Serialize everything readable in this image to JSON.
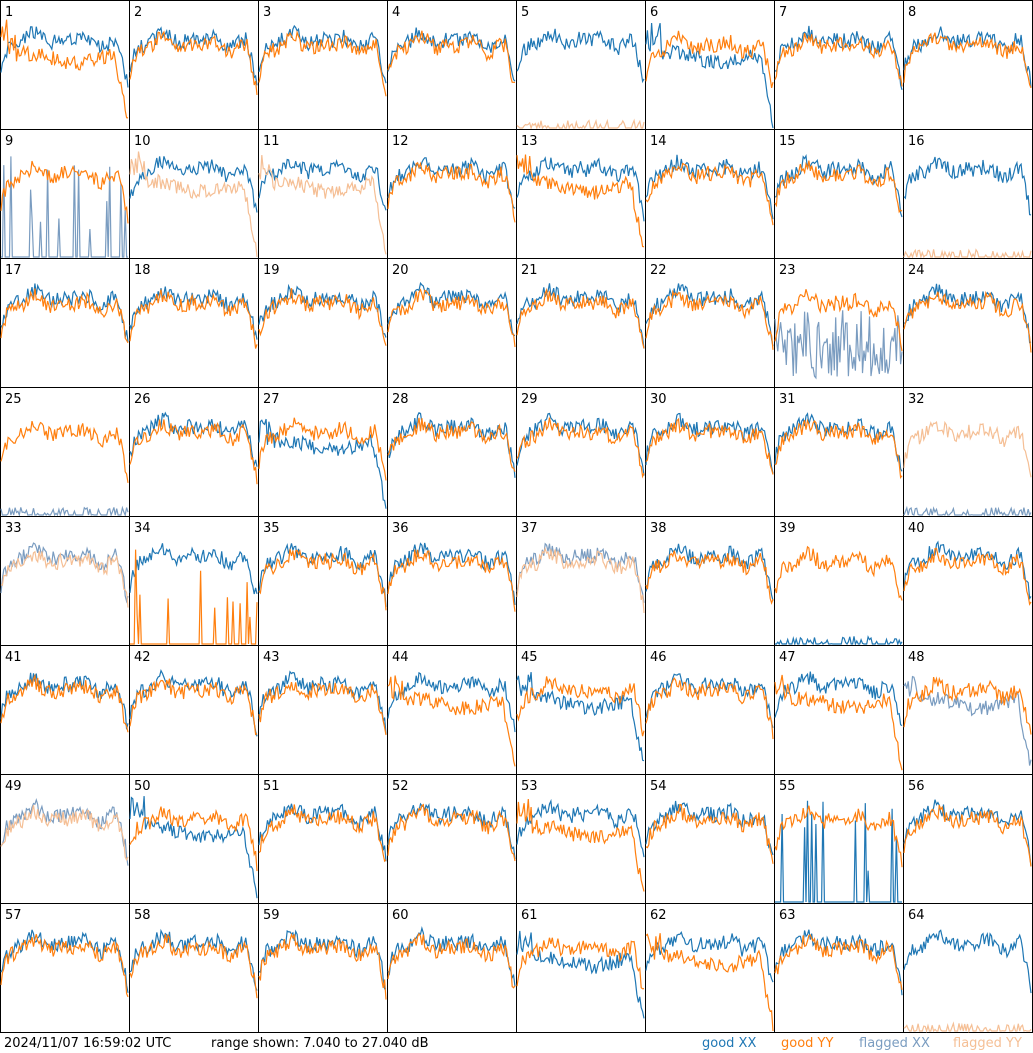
{
  "colors": {
    "good_xx": "#1f77b4",
    "good_yy": "#ff7f0e",
    "flagged_xx": "#7a9cc0",
    "flagged_yy": "#f5bf95",
    "border": "#000000"
  },
  "footer": {
    "timestamp": "2024/11/07 16:59:02 UTC",
    "range_text": "range shown: 7.040 to 27.040 dB"
  },
  "legend": {
    "good_xx": "good XX",
    "good_yy": "good YY",
    "flagged_xx": "flagged XX",
    "flagged_yy": "flagged YY"
  },
  "chart_data": {
    "type": "line",
    "layout": "8x8 small multiples",
    "ylim": [
      7.04,
      27.04
    ],
    "yunit": "dB",
    "series_names": [
      "good XX",
      "good YY",
      "flagged XX",
      "flagged YY"
    ],
    "panels": [
      {
        "id": "1",
        "xx": "good",
        "yy": "good",
        "yy_shape": "rolloff"
      },
      {
        "id": "2",
        "xx": "good",
        "yy": "good"
      },
      {
        "id": "3",
        "xx": "good",
        "yy": "good"
      },
      {
        "id": "4",
        "xx": "good",
        "yy": "good"
      },
      {
        "id": "5",
        "xx": "good",
        "yy": "flagged",
        "yy_shape": "flat"
      },
      {
        "id": "6",
        "xx": "good",
        "yy": "good",
        "xx_shape": "rolloff"
      },
      {
        "id": "7",
        "xx": "good",
        "yy": "good"
      },
      {
        "id": "8",
        "xx": "good",
        "yy": "good"
      },
      {
        "id": "9",
        "xx": "flagged",
        "yy": "good",
        "xx_shape": "spikes"
      },
      {
        "id": "10",
        "xx": "good",
        "yy": "flagged",
        "yy_shape": "rolloff"
      },
      {
        "id": "11",
        "xx": "good",
        "yy": "flagged",
        "yy_shape": "rolloff"
      },
      {
        "id": "12",
        "xx": "good",
        "yy": "good"
      },
      {
        "id": "13",
        "xx": "good",
        "yy": "good",
        "yy_shape": "rolloff"
      },
      {
        "id": "14",
        "xx": "good",
        "yy": "good"
      },
      {
        "id": "15",
        "xx": "good",
        "yy": "good"
      },
      {
        "id": "16",
        "xx": "good",
        "yy": "flagged",
        "yy_shape": "flat"
      },
      {
        "id": "17",
        "xx": "good",
        "yy": "good"
      },
      {
        "id": "18",
        "xx": "good",
        "yy": "good"
      },
      {
        "id": "19",
        "xx": "good",
        "yy": "good"
      },
      {
        "id": "20",
        "xx": "good",
        "yy": "good"
      },
      {
        "id": "21",
        "xx": "good",
        "yy": "good"
      },
      {
        "id": "22",
        "xx": "good",
        "yy": "good"
      },
      {
        "id": "23",
        "xx": "flagged",
        "yy": "good",
        "xx_shape": "noise"
      },
      {
        "id": "24",
        "xx": "good",
        "yy": "good"
      },
      {
        "id": "25",
        "xx": "flagged",
        "yy": "good",
        "xx_shape": "flat"
      },
      {
        "id": "26",
        "xx": "good",
        "yy": "good"
      },
      {
        "id": "27",
        "xx": "good",
        "yy": "good",
        "xx_shape": "rolloff"
      },
      {
        "id": "28",
        "xx": "good",
        "yy": "good"
      },
      {
        "id": "29",
        "xx": "good",
        "yy": "good"
      },
      {
        "id": "30",
        "xx": "good",
        "yy": "good"
      },
      {
        "id": "31",
        "xx": "good",
        "yy": "good"
      },
      {
        "id": "32",
        "xx": "flagged",
        "yy": "flagged",
        "xx_shape": "flat"
      },
      {
        "id": "33",
        "xx": "flagged",
        "yy": "flagged"
      },
      {
        "id": "34",
        "xx": "good",
        "yy": "good",
        "yy_shape": "spikes"
      },
      {
        "id": "35",
        "xx": "good",
        "yy": "good"
      },
      {
        "id": "36",
        "xx": "good",
        "yy": "good"
      },
      {
        "id": "37",
        "xx": "flagged",
        "yy": "flagged"
      },
      {
        "id": "38",
        "xx": "good",
        "yy": "good"
      },
      {
        "id": "39",
        "xx": "good",
        "yy": "good",
        "xx_shape": "flat"
      },
      {
        "id": "40",
        "xx": "good",
        "yy": "good"
      },
      {
        "id": "41",
        "xx": "good",
        "yy": "good"
      },
      {
        "id": "42",
        "xx": "good",
        "yy": "good"
      },
      {
        "id": "43",
        "xx": "good",
        "yy": "good"
      },
      {
        "id": "44",
        "xx": "good",
        "yy": "good",
        "yy_shape": "rolloff"
      },
      {
        "id": "45",
        "xx": "good",
        "yy": "good",
        "xx_shape": "rolloff"
      },
      {
        "id": "46",
        "xx": "good",
        "yy": "good"
      },
      {
        "id": "47",
        "xx": "good",
        "yy": "good",
        "yy_shape": "rolloff"
      },
      {
        "id": "48",
        "xx": "flagged",
        "yy": "good",
        "xx_shape": "rolloff"
      },
      {
        "id": "49",
        "xx": "flagged",
        "yy": "flagged"
      },
      {
        "id": "50",
        "xx": "good",
        "yy": "good",
        "xx_shape": "rolloff"
      },
      {
        "id": "51",
        "xx": "good",
        "yy": "good"
      },
      {
        "id": "52",
        "xx": "good",
        "yy": "good"
      },
      {
        "id": "53",
        "xx": "good",
        "yy": "good",
        "yy_shape": "rolloff"
      },
      {
        "id": "54",
        "xx": "good",
        "yy": "good"
      },
      {
        "id": "55",
        "xx": "good",
        "yy": "good",
        "xx_shape": "spikes"
      },
      {
        "id": "56",
        "xx": "good",
        "yy": "good"
      },
      {
        "id": "57",
        "xx": "good",
        "yy": "good"
      },
      {
        "id": "58",
        "xx": "good",
        "yy": "good"
      },
      {
        "id": "59",
        "xx": "good",
        "yy": "good"
      },
      {
        "id": "60",
        "xx": "good",
        "yy": "good"
      },
      {
        "id": "61",
        "xx": "good",
        "yy": "good",
        "xx_shape": "rolloff"
      },
      {
        "id": "62",
        "xx": "good",
        "yy": "good",
        "yy_shape": "rolloff"
      },
      {
        "id": "63",
        "xx": "good",
        "yy": "good"
      },
      {
        "id": "64",
        "xx": "good",
        "yy": "flagged",
        "yy_shape": "flat"
      }
    ]
  }
}
